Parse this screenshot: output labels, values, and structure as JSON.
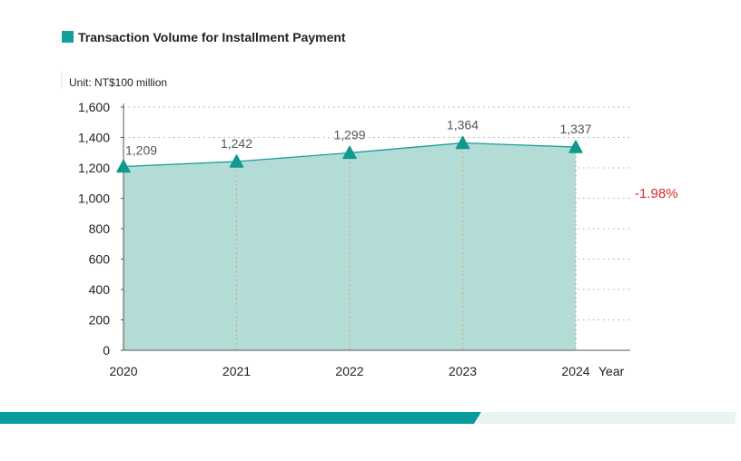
{
  "chart_data": {
    "type": "area",
    "title": "Transaction Volume for Installment Payment",
    "unit": "Unit: NT$100 million",
    "categories": [
      "2020",
      "2021",
      "2022",
      "2023",
      "2024"
    ],
    "xlabel": "Year",
    "series": [
      {
        "values": [
          1209,
          1242,
          1299,
          1364,
          1337
        ],
        "labels": [
          "1,209",
          "1,242",
          "1,299",
          "1,364",
          "1,337"
        ]
      }
    ],
    "ylim": [
      0,
      1600
    ],
    "yticks": [
      0,
      200,
      400,
      600,
      800,
      1000,
      1200,
      1400,
      1600
    ],
    "ytick_labels": [
      "0",
      "200",
      "400",
      "600",
      "800",
      "1,000",
      "1,200",
      "1,400",
      "1,600"
    ],
    "change_annotation": "-1.98%",
    "grid": true,
    "colors": {
      "line": "#1a9e9a",
      "fill": "#b4dcd6",
      "marker": "#12998f",
      "legend": "#14a09a",
      "change": "#d42a2a",
      "band_dark": "#079b9b",
      "band_light": "#e8f4f3"
    }
  }
}
